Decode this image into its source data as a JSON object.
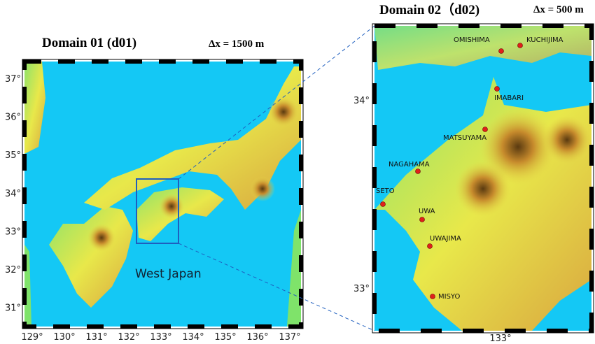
{
  "left_map": {
    "title": "Domain 01 (d01)",
    "resolution": "Δx = 1500 m",
    "region_label": "West Japan",
    "lat_ticks": [
      "37°",
      "36°",
      "35°",
      "34°",
      "33°",
      "32°",
      "31°"
    ],
    "lon_ticks": [
      "129°",
      "130°",
      "131°",
      "132°",
      "133°",
      "134°",
      "135°",
      "136°",
      "137°"
    ]
  },
  "right_map": {
    "title": "Domain 02（d02)",
    "resolution": "Δx = 500 m",
    "lat_ticks": [
      "34°",
      "33°"
    ],
    "lon_ticks": [
      "133°"
    ],
    "stations": [
      "OMISHIMA",
      "KUCHIJIMA",
      "IMABARI",
      "MATSUYAMA",
      "NAGAHAMA",
      "SETO",
      "UWA",
      "UWAJIMA",
      "MISYO"
    ]
  }
}
